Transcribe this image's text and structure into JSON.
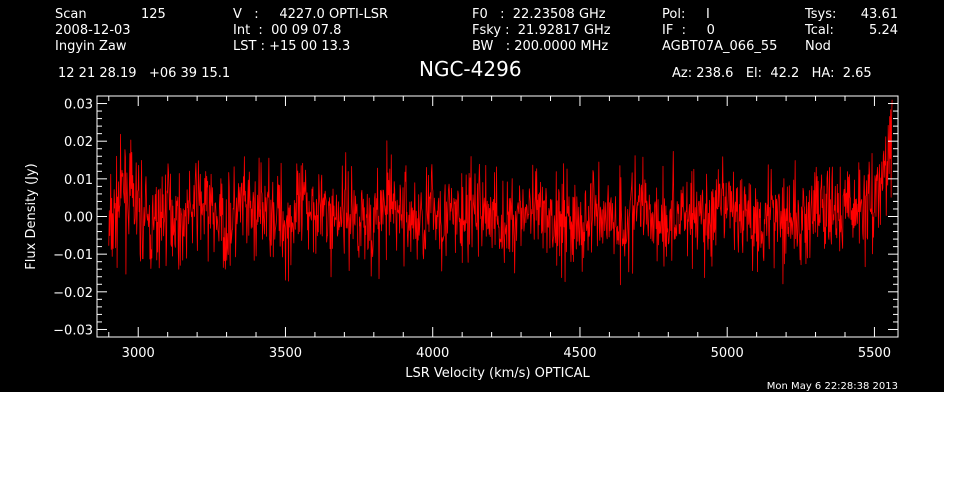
{
  "header": {
    "scan_label": "Scan",
    "scan_value": "125",
    "date": "2008-12-03",
    "observer": "Ingyin Zaw",
    "v_line": "V   :     4227.0 OPTI-LSR",
    "int_line": "Int  :  00 09 07.8",
    "lst_line": "LST : +15 00 13.3",
    "f0_line": "F0   :  22.23508 GHz",
    "fsky_line": "Fsky :  21.92817 GHz",
    "bw_line": "BW   : 200.0000 MHz",
    "pol_line": "Pol:     I",
    "if_line": "IF  :     0",
    "project": "AGBT07A_066_55",
    "tsys_label": "Tsys:",
    "tsys_value": "43.61",
    "tcal_label": "Tcal:",
    "tcal_value": "5.24",
    "mode": "Nod",
    "coords": "12 21 28.19   +06 39 15.1",
    "source": "NGC-4296",
    "az_el_ha": "Az: 238.6   El:  42.2   HA:  2.65",
    "timestamp": "Mon May  6 22:28:38 2013"
  },
  "colors": {
    "background": "#000000",
    "axes": "#ffffff",
    "trace": "#ff0000"
  },
  "chart_data": {
    "type": "line",
    "xlabel": "LSR Velocity (km/s) OPTICAL",
    "ylabel": "Flux Density (Jy)",
    "xlim": [
      2860,
      5580
    ],
    "ylim": [
      -0.032,
      0.032
    ],
    "x_ticks": [
      3000,
      3500,
      4000,
      4500,
      5000,
      5500
    ],
    "x_tick_labels": [
      "3000",
      "3500",
      "4000",
      "4500",
      "5000",
      "5500"
    ],
    "y_ticks": [
      -0.03,
      -0.02,
      -0.01,
      0.0,
      0.01,
      0.02,
      0.03
    ],
    "y_tick_labels": [
      "−0.03",
      "−0.02",
      "−0.01",
      "0.00",
      "0.01",
      "0.02",
      "0.03"
    ],
    "grid": false,
    "series": [
      {
        "x": [
          2900,
          2950,
          3000,
          3050,
          3100,
          3150,
          3200,
          3250,
          3300,
          3350,
          3400,
          3450,
          3500,
          3550,
          3600,
          3650,
          3700,
          3750,
          3800,
          3850,
          3900,
          3950,
          4000,
          4050,
          4100,
          4150,
          4200,
          4250,
          4300,
          4350,
          4400,
          4450,
          4500,
          4550,
          4600,
          4650,
          4700,
          4750,
          4800,
          4850,
          4900,
          4950,
          5000,
          5050,
          5100,
          5150,
          5200,
          5250,
          5300,
          5350,
          5400,
          5450,
          5500,
          5520,
          5540,
          5550,
          5560
        ],
        "y": [
          -0.005,
          0.008,
          0.002,
          -0.004,
          0.003,
          -0.002,
          0.004,
          0.001,
          -0.003,
          0.002,
          0.0,
          0.003,
          -0.002,
          0.001,
          0.004,
          -0.001,
          0.002,
          0.0,
          -0.002,
          0.003,
          0.001,
          -0.002,
          0.002,
          0.0,
          -0.001,
          0.002,
          0.001,
          -0.003,
          0.002,
          0.0,
          -0.002,
          0.001,
          -0.004,
          0.002,
          0.0,
          -0.002,
          0.003,
          0.001,
          -0.002,
          0.002,
          0.0,
          -0.001,
          0.003,
          0.001,
          -0.002,
          0.002,
          0.001,
          -0.003,
          0.002,
          0.0,
          0.003,
          0.002,
          0.005,
          0.008,
          0.012,
          0.018,
          0.022
        ]
      }
    ]
  }
}
